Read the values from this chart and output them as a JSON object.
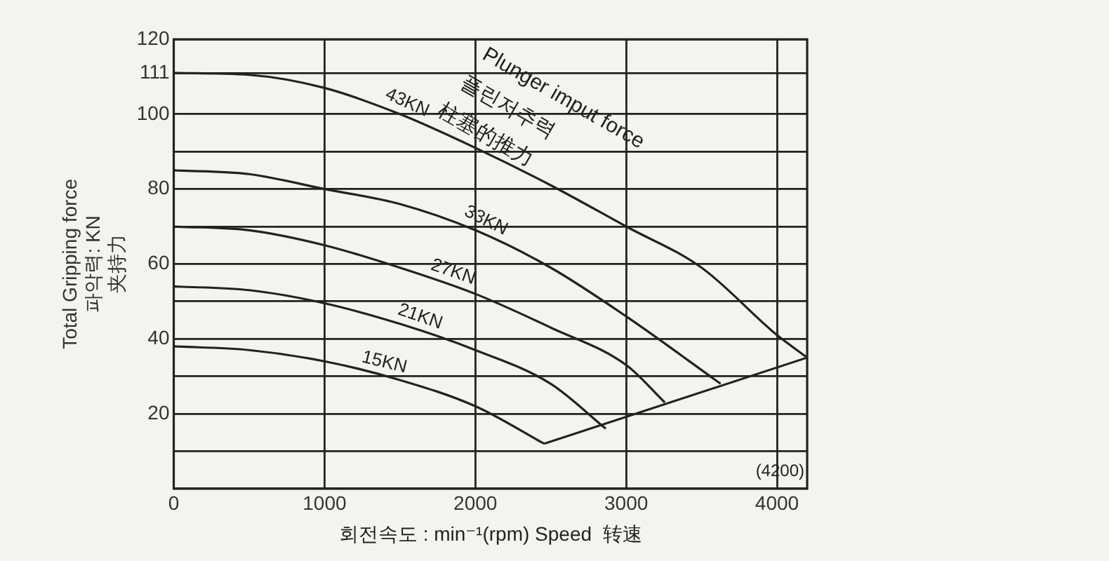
{
  "chart_data": {
    "type": "line",
    "xlabel": "회전속도 : min⁻¹(rpm) Speed  转速",
    "ylabel": "Total Gripping force\n파악력: KN\n夹持力",
    "series": [
      {
        "name": "43KN",
        "color": "#222222",
        "x": [
          0,
          500,
          1000,
          1500,
          2000,
          2500,
          3000,
          3500,
          4000,
          4200
        ],
        "values": [
          111,
          110.5,
          107,
          100,
          91,
          81,
          70,
          59,
          41,
          35
        ]
      },
      {
        "name": "33KN",
        "color": "#222222",
        "x": [
          0,
          500,
          1000,
          1500,
          2000,
          2500,
          3000,
          3626
        ],
        "values": [
          85,
          84,
          80,
          76,
          69,
          59,
          46,
          28
        ]
      },
      {
        "name": "27KN",
        "color": "#222222",
        "x": [
          0,
          500,
          1000,
          1500,
          2000,
          2500,
          3000,
          3256
        ],
        "values": [
          70,
          69,
          65,
          59,
          52,
          43,
          33,
          23
        ]
      },
      {
        "name": "21KN",
        "color": "#222222",
        "x": [
          0,
          500,
          1000,
          1500,
          2000,
          2500,
          2865
        ],
        "values": [
          54,
          53,
          49.5,
          44,
          37,
          28,
          16
        ]
      },
      {
        "name": "15KN",
        "color": "#222222",
        "x": [
          0,
          500,
          1000,
          1500,
          2000,
          2456
        ],
        "values": [
          38,
          37,
          34,
          29,
          22,
          12
        ]
      },
      {
        "color": "#222222",
        "x": [
          2456,
          4200
        ],
        "values": [
          12,
          35
        ]
      }
    ],
    "xlim": [
      0,
      4200
    ],
    "xticks": [
      0,
      1000,
      2000,
      3000,
      4000
    ],
    "ylim": [
      0,
      120
    ],
    "yticks": [
      {
        "value": 0,
        "label": null
      },
      {
        "value": 10,
        "label": null
      },
      20,
      {
        "value": 30,
        "label": null
      },
      40,
      {
        "value": 50,
        "label": null
      },
      60,
      {
        "value": 70,
        "label": null
      },
      80,
      {
        "value": 90,
        "label": null
      },
      100,
      111,
      120
    ],
    "annotations": [
      "Plunger imput force",
      "플린저추력",
      "柱塞的推力",
      "(4200)"
    ],
    "grid": true,
    "legend": false,
    "marker": "none",
    "line_style": "solid"
  }
}
